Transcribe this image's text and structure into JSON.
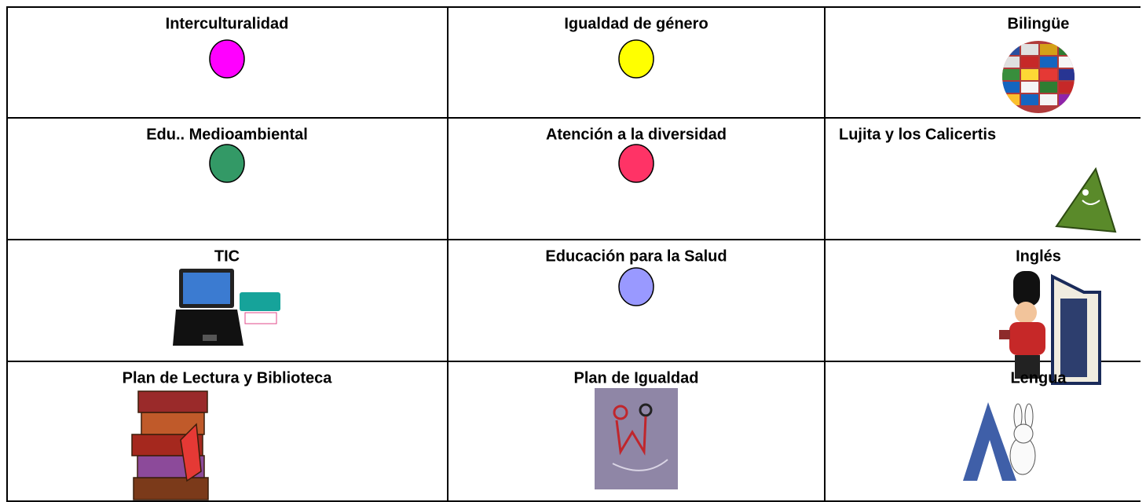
{
  "table": {
    "rows": [
      [
        "Interculturalidad",
        "Igualdad de género",
        "Bilingüe"
      ],
      [
        "Edu.. Medioambiental",
        "Atención a la diversidad",
        "Lujita y los Calicertis"
      ],
      [
        "TIC",
        "Educación para la Salud",
        "Inglés"
      ],
      [
        "Plan de Lectura y Biblioteca",
        "Plan de Igualdad",
        "Lengua"
      ]
    ]
  }
}
